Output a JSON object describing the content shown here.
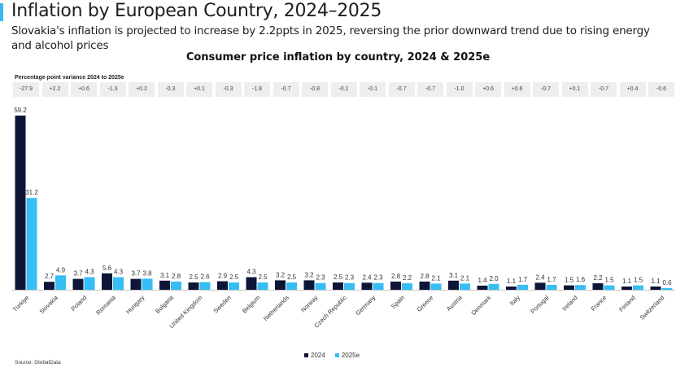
{
  "header": {
    "title": "Inflation by European Country, 2024–2025",
    "subtitle": "Slovakia's inflation is projected to increase by 2.2ppts in 2025, reversing the prior downward trend due to rising energy and alcohol prices"
  },
  "variance": {
    "label": "Percentage point variance 2024 to 2025e",
    "values": [
      "-27.9",
      "+2.2",
      "+0.6",
      "-1.3",
      "+0.2",
      "-0.3",
      "+0.1",
      "-0.3",
      "-1.8",
      "-0.7",
      "-0.8",
      "-0.1",
      "-0.1",
      "-0.7",
      "-0.7",
      "-1.0",
      "+0.6",
      "+0.6",
      "-0.7",
      "+0.1",
      "-0.7",
      "+0.4",
      "-0.6"
    ]
  },
  "source": "Source: GlobalData",
  "colors": {
    "accent": "#3bb8ec",
    "series2024": "#0d1637",
    "series2025e": "#36bdf4"
  },
  "chart_data": {
    "type": "bar",
    "title": "Consumer price inflation by country, 2024 & 2025e",
    "xlabel": "",
    "ylabel": "",
    "ylim": [
      0,
      59.2
    ],
    "grid": false,
    "legend_position": "bottom-center",
    "categories": [
      "Turkiye",
      "Slovakia",
      "Poland",
      "Romania",
      "Hungary",
      "Bulgaria",
      "United Kingdom",
      "Sweden",
      "Belgium",
      "Netherlands",
      "Norway",
      "Czech Republic",
      "Germany",
      "Spain",
      "Greece",
      "Austria",
      "Denmark",
      "Italy",
      "Portugal",
      "Ireland",
      "France",
      "Finland",
      "Switzerland"
    ],
    "series": [
      {
        "name": "2024",
        "color": "#0d1637",
        "values": [
          59.2,
          2.7,
          3.7,
          5.6,
          3.7,
          3.1,
          2.5,
          2.9,
          4.3,
          3.2,
          3.2,
          2.5,
          2.4,
          2.8,
          2.8,
          3.1,
          1.4,
          1.1,
          2.4,
          1.5,
          2.2,
          1.1,
          1.1
        ]
      },
      {
        "name": "2025e",
        "color": "#36bdf4",
        "values": [
          31.2,
          4.9,
          4.3,
          4.3,
          3.8,
          2.8,
          2.6,
          2.5,
          2.5,
          2.5,
          2.3,
          2.3,
          2.3,
          2.2,
          2.1,
          2.1,
          2.0,
          1.7,
          1.7,
          1.6,
          1.5,
          1.5,
          0.6
        ]
      }
    ]
  }
}
